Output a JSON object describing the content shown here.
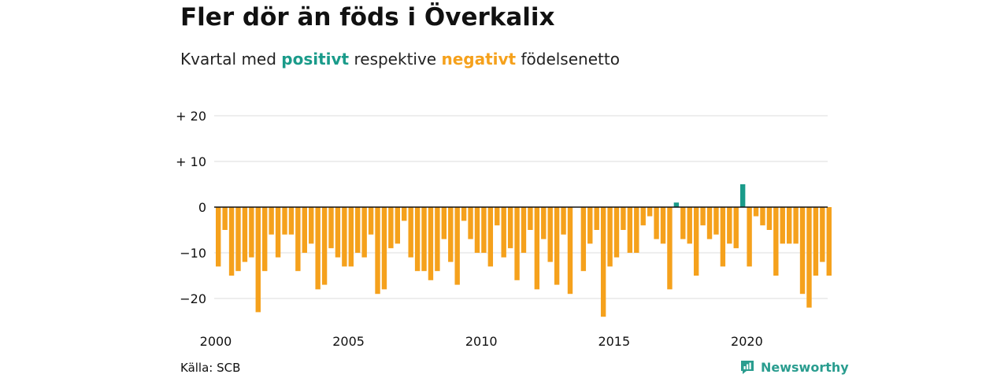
{
  "title": "Fler dör än föds i Överkalix",
  "subtitle": {
    "prefix": "Kvartal med ",
    "positive_word": "positivt",
    "middle": " respektive ",
    "negative_word": "negativt",
    "suffix": " födelsenetto"
  },
  "colors": {
    "positive": "#1a9b8a",
    "negative": "#f5a11c",
    "grid": "#dddddd",
    "zero_line": "#111111"
  },
  "source": "Källa: SCB",
  "brand": {
    "name": "Newsworthy",
    "icon": "newsworthy-logo-icon"
  },
  "chart_data": {
    "type": "bar",
    "title": "Fler dör än föds i Överkalix",
    "subtitle": "Kvartal med positivt respektive negativt födelsenetto",
    "xlabel": "",
    "ylabel": "",
    "x_start": 2000,
    "periods_per_year": 4,
    "x_ticks": [
      2000,
      2005,
      2010,
      2015,
      2020
    ],
    "y_ticks": [
      20,
      10,
      0,
      -10,
      -20
    ],
    "y_tick_labels": [
      "+ 20",
      "+ 10",
      "0",
      "−10",
      "−20"
    ],
    "ylim": [
      -25,
      20
    ],
    "grid": true,
    "values": [
      -13,
      -5,
      -15,
      -14,
      -12,
      -11,
      -23,
      -14,
      -6,
      -11,
      -6,
      -6,
      -14,
      -10,
      -8,
      -18,
      -17,
      -9,
      -11,
      -13,
      -13,
      -10,
      -11,
      -6,
      -19,
      -18,
      -9,
      -8,
      -3,
      -11,
      -14,
      -14,
      -16,
      -14,
      -7,
      -12,
      -17,
      -3,
      -7,
      -10,
      -10,
      -13,
      -4,
      -11,
      -9,
      -16,
      -10,
      -5,
      -18,
      -7,
      -12,
      -17,
      -6,
      -19,
      0,
      -14,
      -8,
      -5,
      -24,
      -13,
      -11,
      -5,
      -10,
      -10,
      -4,
      -2,
      -7,
      -8,
      -18,
      1,
      -7,
      -8,
      -15,
      -4,
      -7,
      -6,
      -13,
      -8,
      -9,
      5,
      -13,
      -2,
      -4,
      -5,
      -15,
      -8,
      -8,
      -8,
      -19,
      -22,
      -15,
      -12,
      -15
    ]
  }
}
